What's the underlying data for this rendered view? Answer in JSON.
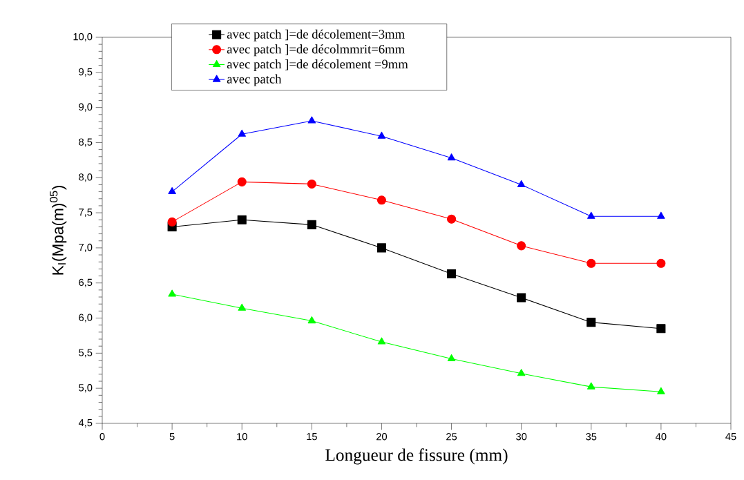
{
  "chart_data": {
    "type": "line",
    "xlabel": "Longueur de fissure (mm)",
    "ylabel": "K$_{I}$(Mpa(m)$^{05}$)",
    "x": [
      5,
      10,
      15,
      20,
      25,
      30,
      35,
      40
    ],
    "xlim": [
      0,
      45
    ],
    "xticks": [
      0,
      5,
      10,
      15,
      20,
      25,
      30,
      35,
      40,
      45
    ],
    "ylim": [
      4.5,
      10
    ],
    "yticks": [
      {
        "value": 4.5,
        "label": "4,5"
      },
      {
        "value": 5,
        "label": "5,0"
      },
      {
        "value": 5.5,
        "label": "5,5"
      },
      {
        "value": 6,
        "label": "6,0"
      },
      {
        "value": 6.5,
        "label": "6,5"
      },
      {
        "value": 7,
        "label": "7,0"
      },
      {
        "value": 7.5,
        "label": "7,5"
      },
      {
        "value": 8,
        "label": "8,0"
      },
      {
        "value": 8.5,
        "label": "8,5"
      },
      {
        "value": 9,
        "label": "9,0"
      },
      {
        "value": 9.5,
        "label": "9,5"
      },
      {
        "value": 10,
        "label": "10,0"
      }
    ],
    "grid": false,
    "legend": "top",
    "line_style": "solid",
    "series": [
      {
        "name": "avec patch ]=de décolement=3mm",
        "color": "#000000",
        "marker": "square",
        "values": [
          7.3,
          7.4,
          7.33,
          7.0,
          6.63,
          6.29,
          5.94,
          5.85
        ]
      },
      {
        "name": "avec patch ]=de décolmmrit=6mm",
        "color": "#ff0000",
        "marker": "circle",
        "values": [
          7.37,
          7.94,
          7.91,
          7.68,
          7.41,
          7.03,
          6.78,
          6.78
        ]
      },
      {
        "name": "avec patch ]=de décolement =9mm",
        "color": "#00ff00",
        "marker": "triangle",
        "values": [
          6.34,
          6.14,
          5.96,
          5.66,
          5.42,
          5.21,
          5.02,
          4.95
        ]
      },
      {
        "name": "avec patch",
        "color": "#0000ff",
        "marker": "triangle-down",
        "values": [
          7.8,
          8.62,
          8.81,
          8.59,
          8.28,
          7.9,
          7.45,
          7.45
        ]
      }
    ]
  }
}
